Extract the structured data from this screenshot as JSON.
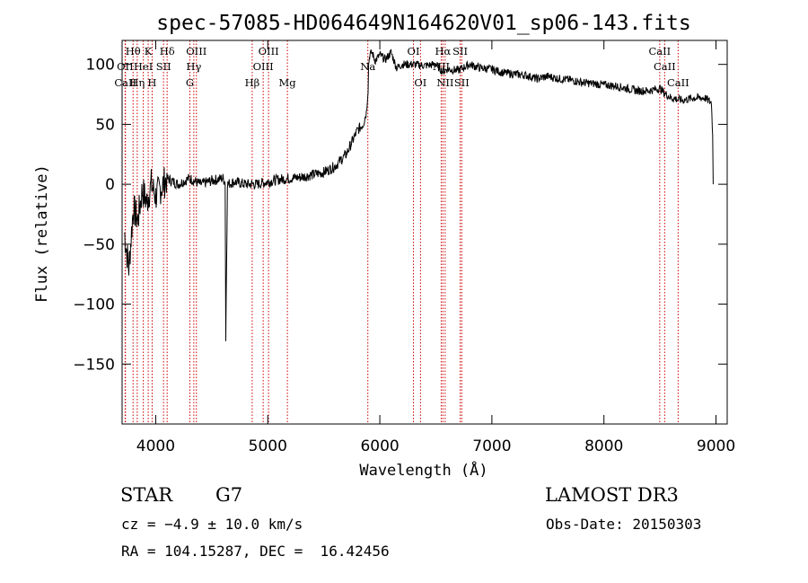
{
  "chart_data": {
    "type": "line",
    "title": "spec-57085-HD064649N164620V01_sp06-143.fits",
    "xlabel": "Wavelength (Å)",
    "ylabel": "Flux (relative)",
    "xlim": [
      3700,
      9100
    ],
    "ylim": [
      -200,
      120
    ],
    "x_ticks": [
      4000,
      5000,
      6000,
      7000,
      8000,
      9000
    ],
    "y_ticks": [
      -150,
      -100,
      -50,
      0,
      50,
      100
    ],
    "x_tick_labels": [
      "4000",
      "5000",
      "6000",
      "7000",
      "8000",
      "9000"
    ],
    "y_tick_labels": [
      "−150",
      "−100",
      "−50",
      "0",
      "50",
      "100"
    ],
    "series": [
      {
        "color": "#000000",
        "x": [
          3720,
          3760,
          3800,
          3840,
          3880,
          3920,
          3960,
          4000,
          4100,
          4200,
          4300,
          4400,
          4500,
          4600,
          4620,
          4625,
          4640,
          4700,
          4800,
          4900,
          5000,
          5100,
          5200,
          5300,
          5400,
          5500,
          5600,
          5700,
          5750,
          5800,
          5850,
          5880,
          5895,
          5900,
          5910,
          5930,
          5960,
          6000,
          6050,
          6100,
          6150,
          6200,
          6300,
          6400,
          6500,
          6560,
          6600,
          6700,
          6800,
          6900,
          7000,
          7100,
          7200,
          7300,
          7400,
          7500,
          7600,
          7700,
          7800,
          7900,
          8000,
          8100,
          8200,
          8300,
          8400,
          8500,
          8540,
          8600,
          8700,
          8800,
          8900,
          8960,
          8970,
          8975
        ],
        "y": [
          -40,
          -70,
          -20,
          -30,
          -5,
          -15,
          0,
          -10,
          5,
          0,
          5,
          0,
          3,
          5,
          2,
          -130,
          0,
          2,
          0,
          0,
          2,
          4,
          5,
          6,
          8,
          10,
          15,
          25,
          35,
          45,
          50,
          60,
          80,
          100,
          108,
          110,
          103,
          108,
          104,
          110,
          97,
          100,
          100,
          99,
          100,
          94,
          96,
          95,
          100,
          97,
          96,
          93,
          92,
          91,
          88,
          90,
          88,
          87,
          85,
          84,
          83,
          82,
          80,
          78,
          78,
          80,
          76,
          72,
          70,
          72,
          72,
          68,
          40,
          0
        ]
      }
    ],
    "line_markers": [
      {
        "label": "Hθ",
        "x": 3798,
        "row": 1
      },
      {
        "label": "OII",
        "x": 3727,
        "row": 2
      },
      {
        "label": "Hη",
        "x": 3835,
        "row": 3
      },
      {
        "label": "CaII",
        "x": 3730,
        "row": 3
      },
      {
        "label": "HeI",
        "x": 3889,
        "row": 2
      },
      {
        "label": "K",
        "x": 3933,
        "row": 1
      },
      {
        "label": "H",
        "x": 3968,
        "row": 3
      },
      {
        "label": "SII",
        "x": 4070,
        "row": 2
      },
      {
        "label": "Hδ",
        "x": 4102,
        "row": 1
      },
      {
        "label": "OIII",
        "x": 4363,
        "row": 1
      },
      {
        "label": "Hγ",
        "x": 4340,
        "row": 2
      },
      {
        "label": "G",
        "x": 4305,
        "row": 3
      },
      {
        "label": "Hβ",
        "x": 4861,
        "row": 3
      },
      {
        "label": "OIII",
        "x": 4959,
        "row": 2
      },
      {
        "label": "OIII",
        "x": 5007,
        "row": 1
      },
      {
        "label": "Mg",
        "x": 5175,
        "row": 3
      },
      {
        "label": "Na",
        "x": 5893,
        "row": 2
      },
      {
        "label": "OI",
        "x": 6300,
        "row": 1
      },
      {
        "label": "OI",
        "x": 6363,
        "row": 3
      },
      {
        "label": "Hα",
        "x": 6563,
        "row": 1
      },
      {
        "label": "NII",
        "x": 6548,
        "row": 2
      },
      {
        "label": "NII",
        "x": 6583,
        "row": 3
      },
      {
        "label": "SII",
        "x": 6717,
        "row": 1
      },
      {
        "label": "SII",
        "x": 6731,
        "row": 3
      },
      {
        "label": "CaII",
        "x": 8498,
        "row": 1
      },
      {
        "label": "CaII",
        "x": 8542,
        "row": 2
      },
      {
        "label": "CaII",
        "x": 8662,
        "row": 3
      }
    ],
    "marker_color": "#cc0000"
  },
  "info": {
    "class": "STAR",
    "subclass": "G7",
    "survey": "LAMOST DR3",
    "cz": "cz = −4.9 ± 10.0 km/s",
    "obs_date": "Obs-Date: 20150303",
    "coords": "RA = 104.15287, DEC =  16.42456"
  }
}
